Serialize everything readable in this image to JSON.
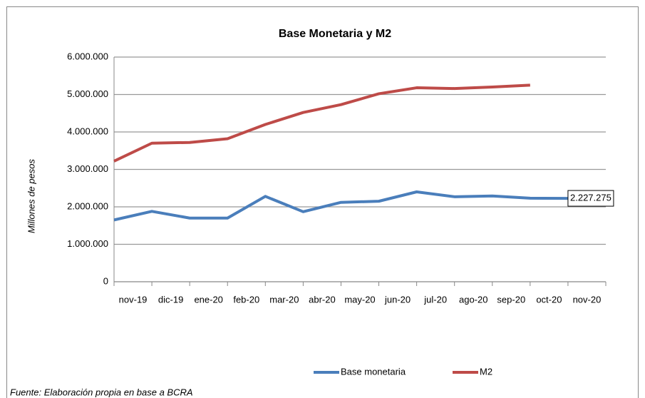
{
  "chart_data": {
    "type": "line",
    "title": "Base Monetaria y M2",
    "y_label": "Millones de pesos",
    "source": "Fuente: Elaboración propia en base a BCRA",
    "categories": [
      "nov-19",
      "dic-19",
      "ene-20",
      "feb-20",
      "mar-20",
      "abr-20",
      "may-20",
      "jun-20",
      "jul-20",
      "ago-20",
      "sep-20",
      "oct-20",
      "nov-20"
    ],
    "series": [
      {
        "name": "Base monetaria",
        "color": "#4a7ebb",
        "values": [
          1650000,
          1880000,
          1700000,
          1700000,
          2280000,
          1870000,
          2120000,
          2150000,
          2400000,
          2270000,
          2290000,
          2230000,
          2227275
        ],
        "value_labels": [
          null,
          null,
          null,
          null,
          null,
          null,
          null,
          null,
          null,
          null,
          null,
          null,
          "2.227.275"
        ]
      },
      {
        "name": "M2",
        "color": "#be4b48",
        "values": [
          3220000,
          3700000,
          3720000,
          3820000,
          4200000,
          4520000,
          4730000,
          5020000,
          5180000,
          5160000,
          5200000,
          5250000,
          null
        ]
      }
    ],
    "ylim": [
      0,
      6000000
    ],
    "yticks": [
      0,
      {
        "value": 1000000,
        "label": "1.000.000"
      },
      {
        "value": 2000000,
        "label": "2.000.000"
      },
      {
        "value": 3000000,
        "label": "3.000.000"
      },
      {
        "value": 4000000,
        "label": "4.000.000"
      },
      {
        "value": 5000000,
        "label": "5.000.000"
      },
      {
        "value": 6000000,
        "label": "6.000.000"
      }
    ],
    "grid": true,
    "legend": "bottom"
  }
}
